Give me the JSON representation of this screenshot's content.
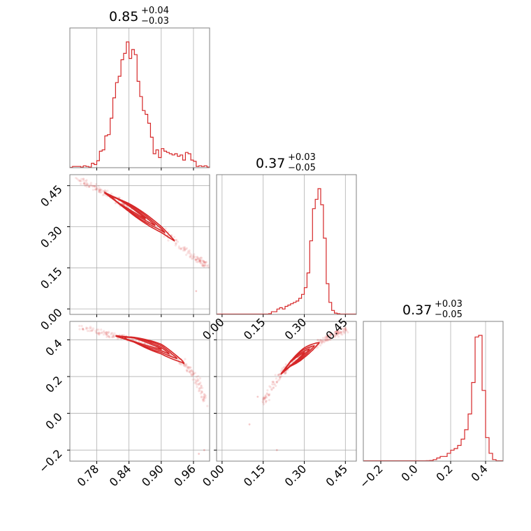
{
  "chart_data": [
    {
      "type": "histogram",
      "panel": "p1-marginal",
      "title": {
        "value": "0.85",
        "plus": "+0.04",
        "minus": "−0.03"
      },
      "xlim": [
        0.73,
        0.99
      ],
      "xticks": [
        "0.78",
        "0.84",
        "0.90",
        "0.96"
      ],
      "xtick_values": [
        0.78,
        0.84,
        0.9,
        0.96
      ],
      "tick_labels_shown": false,
      "bin_start": 0.735,
      "bin_width": 0.005,
      "heights": [
        0.01,
        0.01,
        0.01,
        0.005,
        0.015,
        0.01,
        0.005,
        0.035,
        0.025,
        0.055,
        0.13,
        0.14,
        0.25,
        0.26,
        0.39,
        0.55,
        0.67,
        0.72,
        0.85,
        0.9,
        0.99,
        0.86,
        0.93,
        0.89,
        0.68,
        0.56,
        0.45,
        0.42,
        0.35,
        0.24,
        0.11,
        0.14,
        0.08,
        0.15,
        0.13,
        0.12,
        0.11,
        0.1,
        0.11,
        0.09,
        0.1,
        0.06,
        0.12,
        0.11,
        0.06,
        0.05,
        0.01,
        0.015,
        0.01,
        0.015,
        0.005
      ]
    },
    {
      "type": "histogram",
      "panel": "p2-marginal",
      "title": {
        "value": "0.37",
        "plus": "+0.03",
        "minus": "−0.05"
      },
      "xlim": [
        -0.02,
        0.49
      ],
      "xticks": [
        "0.00",
        "0.15",
        "0.30",
        "0.45"
      ],
      "xtick_values": [
        0.0,
        0.15,
        0.3,
        0.45
      ],
      "tick_labels_shown": true,
      "bin_start": 0.17,
      "bin_width": 0.01,
      "heights": [
        0.005,
        0.02,
        0.02,
        0.04,
        0.05,
        0.04,
        0.06,
        0.07,
        0.08,
        0.09,
        0.1,
        0.12,
        0.15,
        0.2,
        0.31,
        0.55,
        0.79,
        0.86,
        0.94,
        0.82,
        0.57,
        0.23,
        0.09,
        0.03,
        0.01,
        0.005
      ]
    },
    {
      "type": "histogram",
      "panel": "p3-marginal",
      "title": {
        "value": "0.37",
        "plus": "+0.03",
        "minus": "−0.05"
      },
      "xlim": [
        -0.3,
        0.5
      ],
      "xticks": [
        "−0.2",
        "0.0",
        "0.2",
        "0.4"
      ],
      "xtick_values": [
        -0.2,
        0.0,
        0.2,
        0.4
      ],
      "tick_labels_shown": true,
      "bin_start": 0.06,
      "bin_width": 0.02,
      "heights": [
        0.003,
        0.004,
        0.01,
        0.02,
        0.03,
        0.03,
        0.05,
        0.07,
        0.08,
        0.1,
        0.14,
        0.2,
        0.3,
        0.5,
        0.79,
        0.8,
        0.45,
        0.15,
        0.05,
        0.01
      ]
    },
    {
      "type": "scatter",
      "panel": "p1-vs-p2",
      "xlim": [
        0.73,
        0.99
      ],
      "ylim": [
        -0.02,
        0.49
      ],
      "yticks": [
        "0.00",
        "0.15",
        "0.30",
        "0.45"
      ],
      "ytick_values": [
        0.0,
        0.15,
        0.3,
        0.45
      ],
      "ridge": [
        [
          0.745,
          0.475
        ],
        [
          0.79,
          0.43
        ],
        [
          0.84,
          0.37
        ],
        [
          0.9,
          0.29
        ],
        [
          0.96,
          0.19
        ],
        [
          0.985,
          0.16
        ]
      ],
      "stray_points": [
        [
          0.965,
          0.065
        ]
      ]
    },
    {
      "type": "scatter",
      "panel": "p1-vs-p3",
      "xlim": [
        0.73,
        0.99
      ],
      "ylim": [
        -0.26,
        0.5
      ],
      "yticks": [
        "−0.2",
        "0.0",
        "0.2",
        "0.4"
      ],
      "ytick_values": [
        -0.2,
        0.0,
        0.2,
        0.4
      ],
      "ridge": [
        [
          0.75,
          0.47
        ],
        [
          0.8,
          0.43
        ],
        [
          0.85,
          0.4
        ],
        [
          0.9,
          0.35
        ],
        [
          0.94,
          0.28
        ],
        [
          0.965,
          0.19
        ],
        [
          0.985,
          0.05
        ]
      ],
      "stray_points": [
        [
          0.98,
          -0.2
        ],
        [
          0.97,
          -0.22
        ]
      ]
    },
    {
      "type": "scatter",
      "panel": "p2-vs-p3",
      "xlim": [
        -0.02,
        0.49
      ],
      "ylim": [
        -0.26,
        0.5
      ],
      "ridge": [
        [
          0.15,
          0.05
        ],
        [
          0.2,
          0.19
        ],
        [
          0.25,
          0.27
        ],
        [
          0.3,
          0.33
        ],
        [
          0.35,
          0.38
        ],
        [
          0.4,
          0.42
        ],
        [
          0.46,
          0.46
        ]
      ],
      "stray_points": [
        [
          0.1,
          -0.06
        ],
        [
          0.13,
          0.09
        ],
        [
          0.2,
          -0.2
        ]
      ]
    }
  ],
  "style": {
    "line_color": "#d62728",
    "axis_color": "#808080",
    "grid_color": "#b0b0b0"
  }
}
